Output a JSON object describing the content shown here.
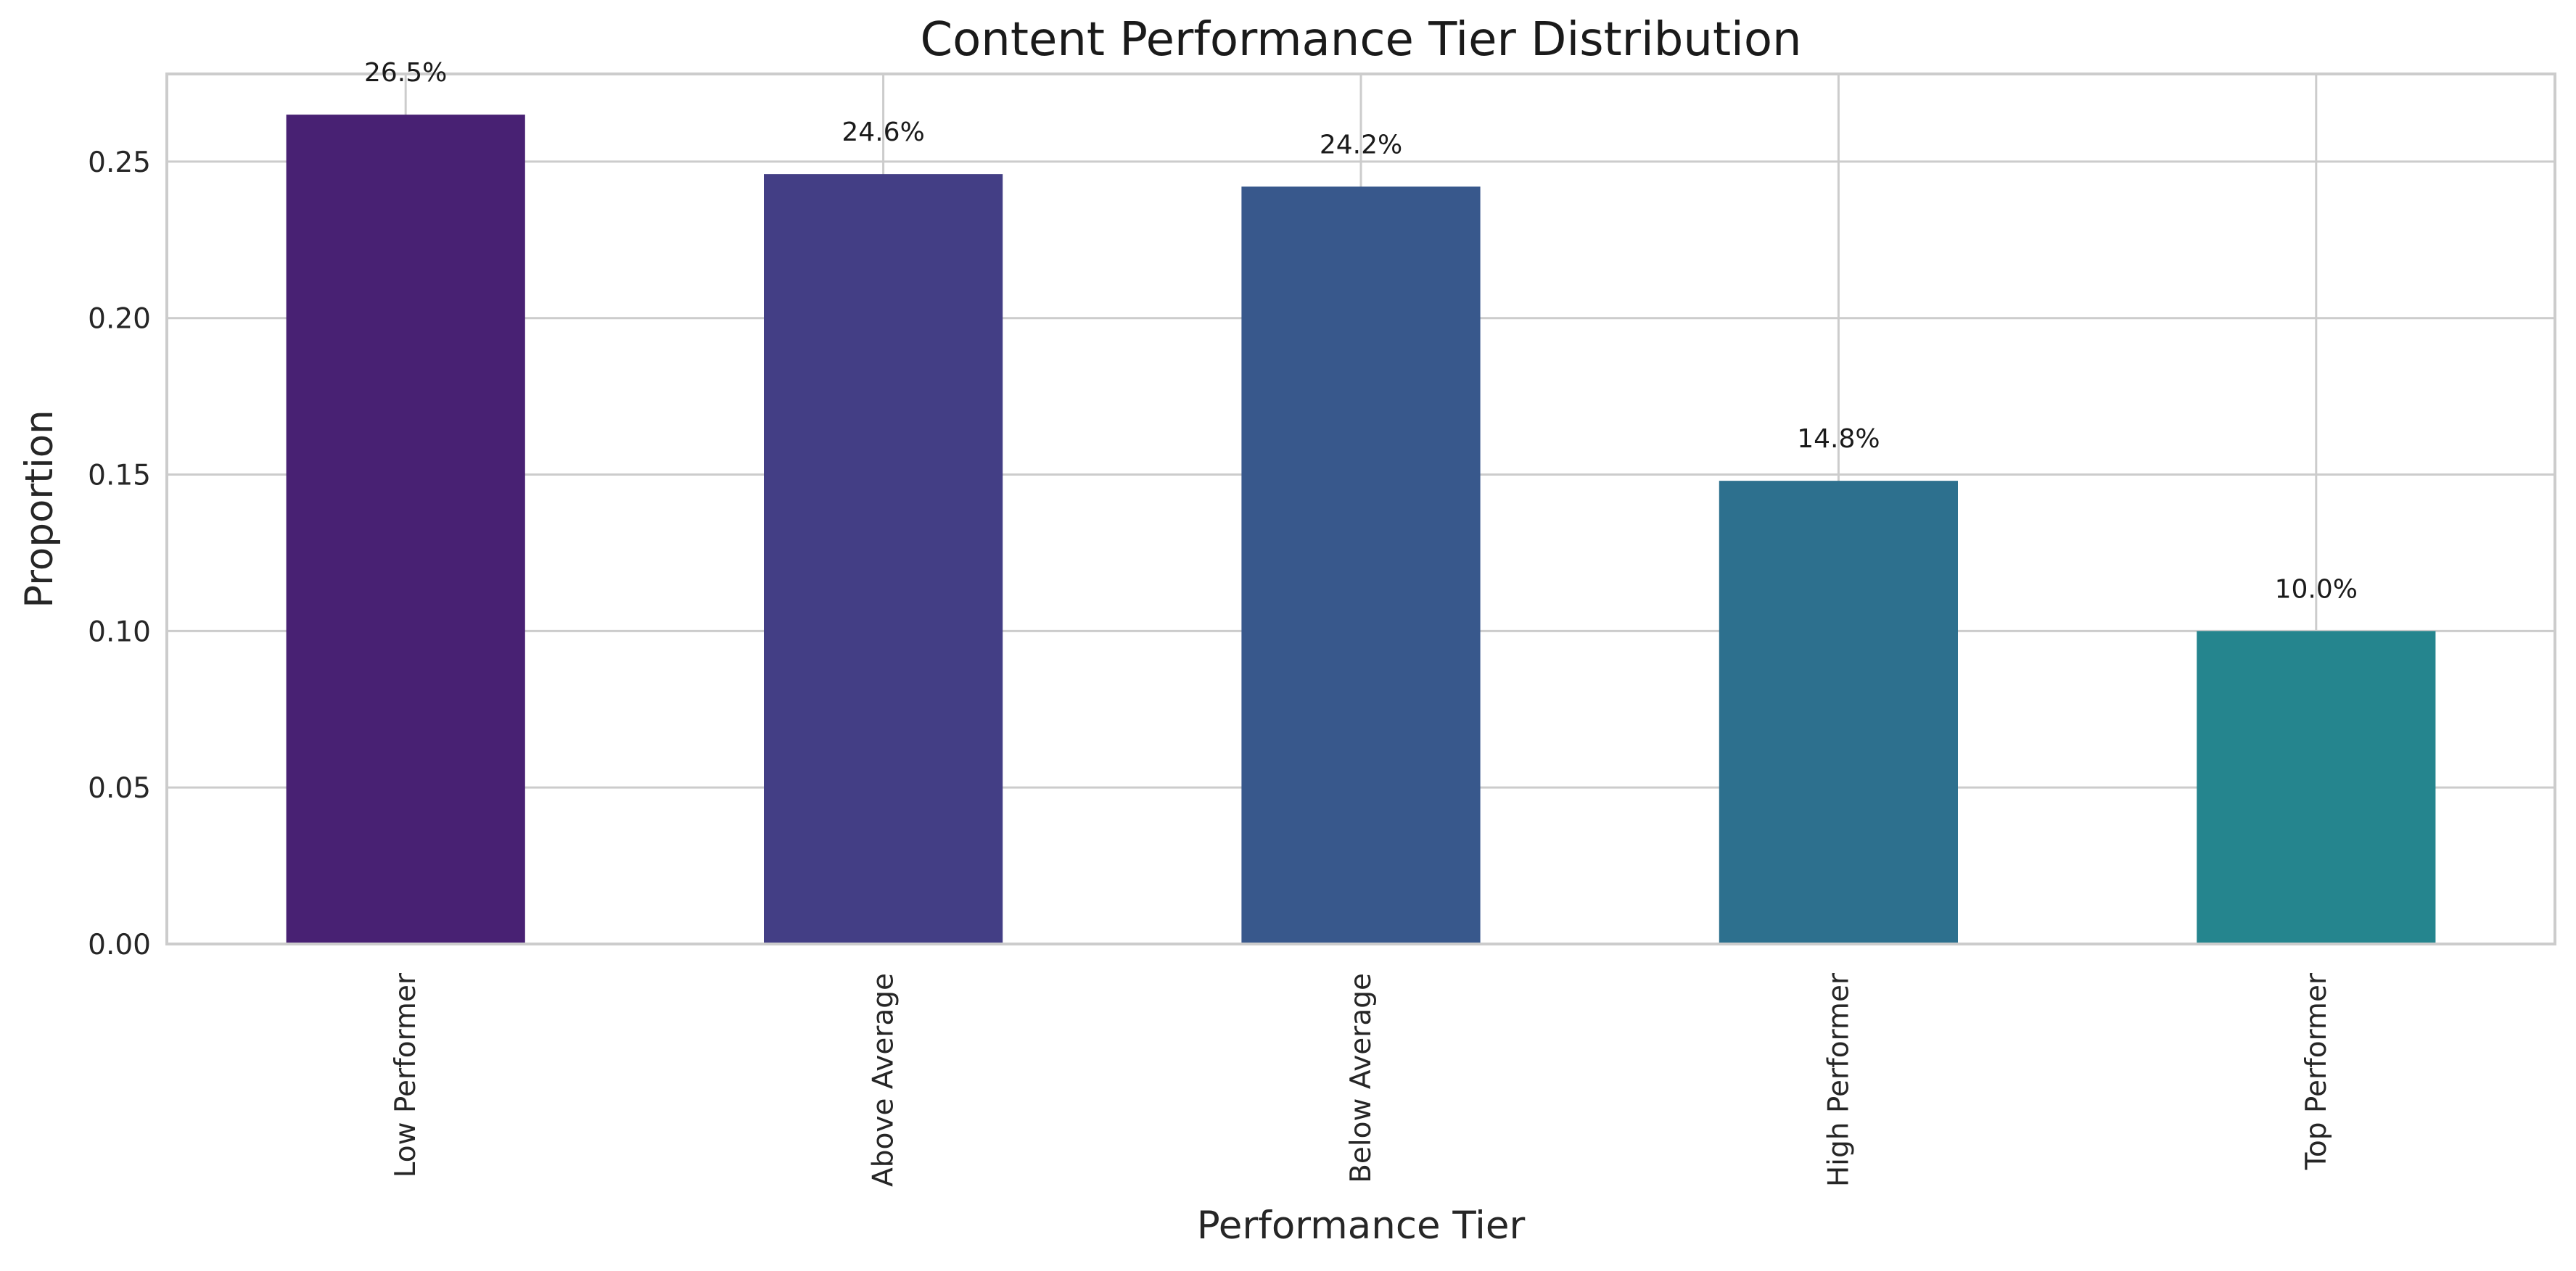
{
  "chart_data": {
    "type": "bar",
    "title": "Content Performance Tier Distribution",
    "xlabel": "Performance Tier",
    "ylabel": "Proportion",
    "categories": [
      "Low Performer",
      "Above Average",
      "Below Average",
      "High Performer",
      "Top Performer"
    ],
    "values": [
      0.265,
      0.246,
      0.242,
      0.148,
      0.1
    ],
    "value_labels": [
      "26.5%",
      "24.6%",
      "24.2%",
      "14.8%",
      "10.0%"
    ],
    "ylim": [
      0,
      0.278
    ],
    "yticks": [
      0.0,
      0.05,
      0.1,
      0.15,
      0.2,
      0.25
    ],
    "ytick_labels": [
      "0.00",
      "0.05",
      "0.10",
      "0.15",
      "0.20",
      "0.25"
    ],
    "grid": true,
    "legend": "none",
    "colors": [
      "#482173",
      "#433e85",
      "#38588c",
      "#2d708e",
      "#25858e"
    ],
    "grid_color": "#cccccc",
    "axis_color": "#cccccc"
  }
}
